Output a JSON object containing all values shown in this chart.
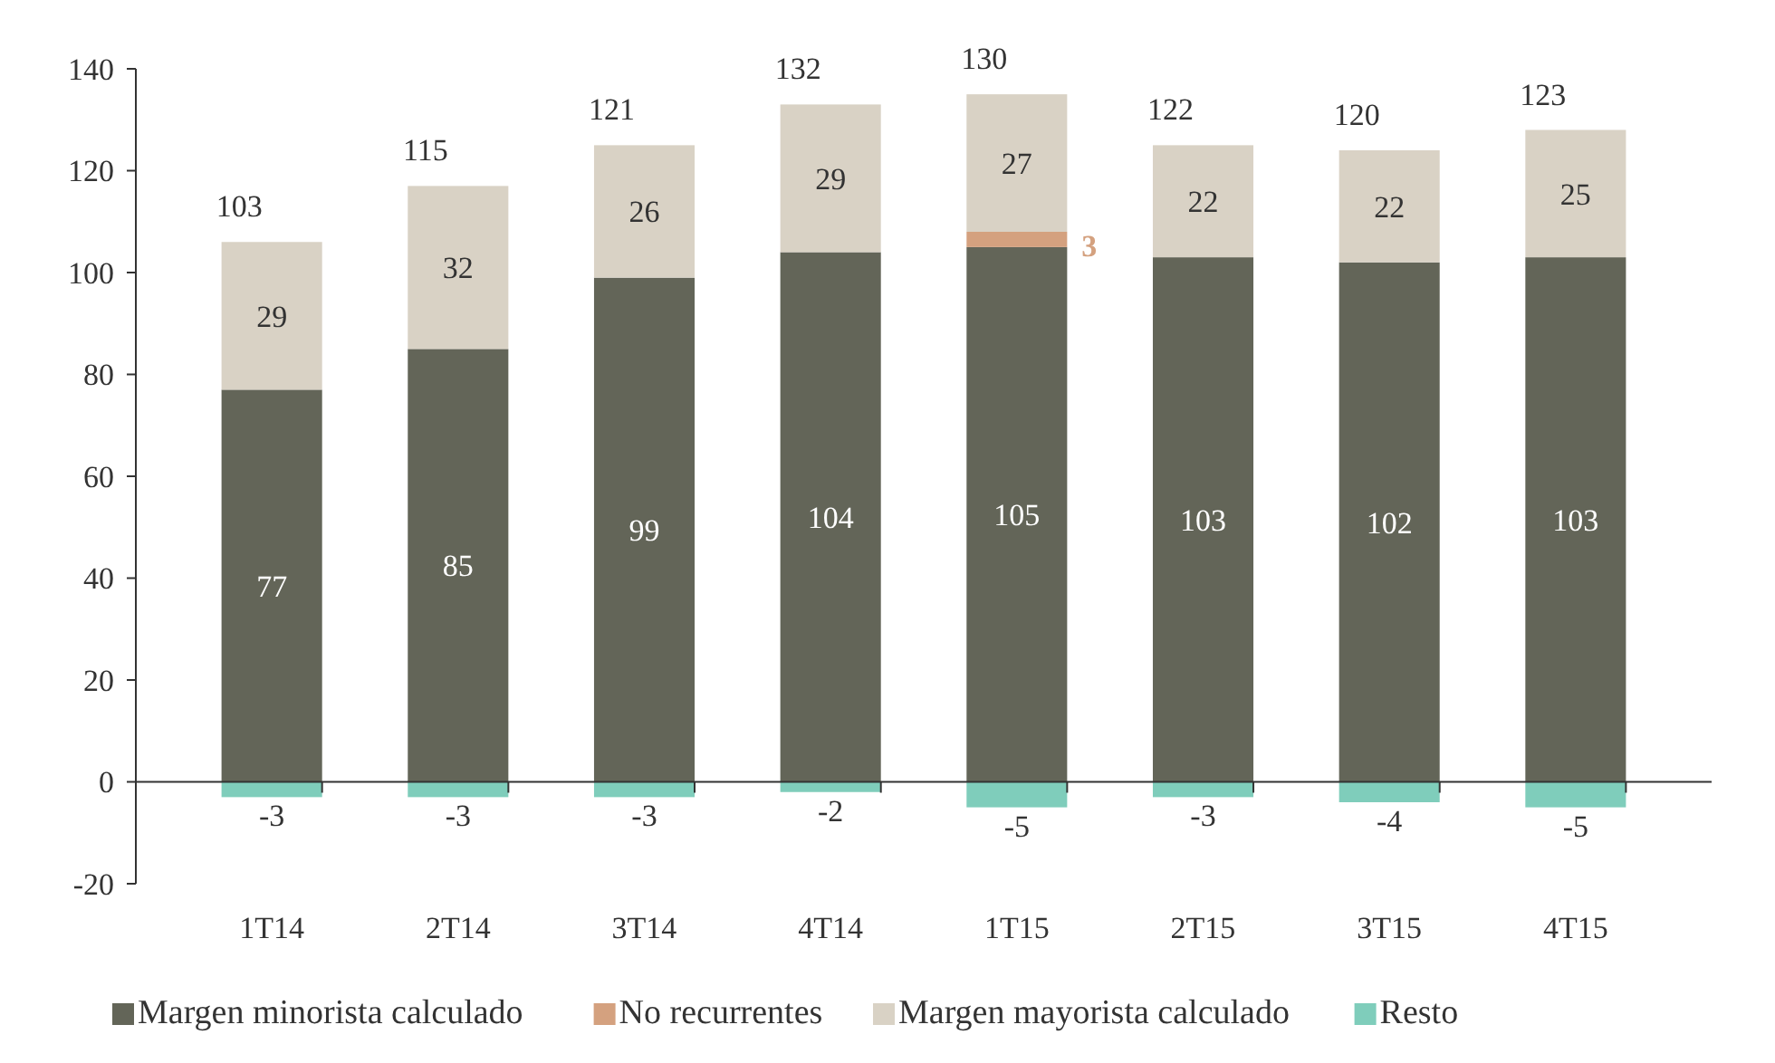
{
  "chart_data": {
    "type": "bar",
    "stacked": true,
    "categories": [
      "1T14",
      "2T14",
      "3T14",
      "4T14",
      "1T15",
      "2T15",
      "3T15",
      "4T15"
    ],
    "series": [
      {
        "name": "Margen minorista calculado",
        "color": "#636558",
        "values": [
          77,
          85,
          99,
          104,
          105,
          103,
          102,
          103
        ]
      },
      {
        "name": "No recurrentes",
        "color": "#d4a17f",
        "values": [
          null,
          null,
          null,
          null,
          3,
          null,
          null,
          null
        ]
      },
      {
        "name": "Margen mayorista calculado",
        "color": "#d9d2c5",
        "values": [
          29,
          32,
          26,
          29,
          27,
          22,
          22,
          25
        ]
      },
      {
        "name": "Resto",
        "color": "#7fcdbb",
        "values": [
          -3,
          -3,
          -3,
          -2,
          -5,
          -3,
          -4,
          -5
        ]
      }
    ],
    "totals": [
      "103",
      "115",
      "121",
      "132",
      "130",
      "122",
      "120",
      "123"
    ],
    "data_labels": true,
    "ylim": [
      -20,
      140
    ],
    "yticks": [
      -20,
      0,
      20,
      40,
      60,
      80,
      100,
      120,
      140
    ],
    "legend": "bottom"
  }
}
